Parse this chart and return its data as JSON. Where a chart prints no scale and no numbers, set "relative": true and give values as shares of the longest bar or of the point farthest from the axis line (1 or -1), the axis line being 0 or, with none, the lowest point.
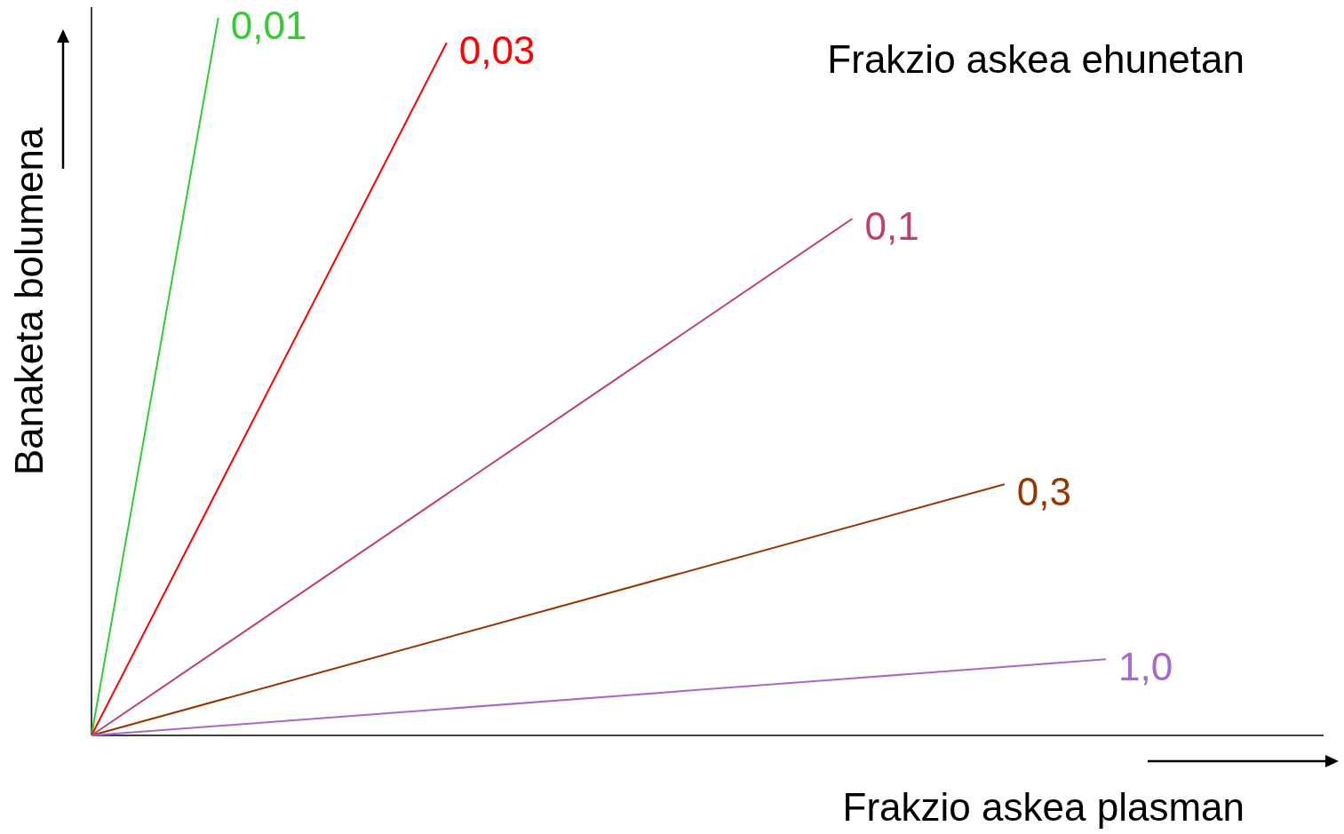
{
  "chart_data": {
    "type": "line",
    "relative": true,
    "legend_title": "Frakzio askea ehunetan",
    "xlabel": "Frakzio askea plasman",
    "ylabel": "Banaketa bolumena",
    "legend": false,
    "marker": "none",
    "line_style": "solid",
    "categories": [
      null,
      null,
      null,
      null,
      null,
      null,
      null,
      null,
      null,
      null,
      null,
      null,
      null,
      null,
      null,
      null,
      null,
      null,
      null,
      null,
      null,
      null,
      null,
      null,
      null,
      null,
      null,
      null,
      null,
      null,
      null,
      null,
      null,
      null,
      null,
      null,
      null,
      null,
      null,
      null,
      null
    ],
    "series": [
      {
        "name": "0,01",
        "color": "#33cc33",
        "values": [
          0,
          null,
          null,
          null,
          null,
          1,
          null,
          null,
          null,
          null,
          null,
          null,
          null,
          null,
          null,
          null,
          null,
          null,
          null,
          null,
          null,
          null,
          null,
          null,
          null,
          null,
          null,
          null,
          null,
          null,
          null,
          null,
          null,
          null,
          null,
          null,
          null,
          null,
          null,
          null,
          null
        ]
      },
      {
        "name": "0,03",
        "color": "#ff0000",
        "values": [
          0,
          null,
          null,
          null,
          null,
          null,
          null,
          null,
          null,
          null,
          null,
          null,
          null,
          null,
          0.965,
          null,
          null,
          null,
          null,
          null,
          null,
          null,
          null,
          null,
          null,
          null,
          null,
          null,
          null,
          null,
          null,
          null,
          null,
          null,
          null,
          null,
          null,
          null,
          null,
          null,
          null
        ]
      },
      {
        "name": "0,1",
        "color": "#c0406a",
        "values": [
          0,
          null,
          null,
          null,
          null,
          null,
          null,
          null,
          null,
          null,
          null,
          null,
          null,
          null,
          null,
          null,
          null,
          null,
          null,
          null,
          null,
          null,
          null,
          null,
          null,
          null,
          null,
          null,
          null,
          null,
          0.72,
          null,
          null,
          null,
          null,
          null,
          null,
          null,
          null,
          null,
          null
        ]
      },
      {
        "name": "0,3",
        "color": "#993300",
        "values": [
          0,
          null,
          null,
          null,
          null,
          null,
          null,
          null,
          null,
          null,
          null,
          null,
          null,
          null,
          null,
          null,
          null,
          null,
          null,
          null,
          null,
          null,
          null,
          null,
          null,
          null,
          null,
          null,
          null,
          null,
          null,
          null,
          null,
          null,
          null,
          null,
          0.35,
          null,
          null,
          null,
          null
        ]
      },
      {
        "name": "1,0",
        "color": "#aa66cc",
        "values": [
          0,
          null,
          null,
          null,
          null,
          null,
          null,
          null,
          null,
          null,
          null,
          null,
          null,
          null,
          null,
          null,
          null,
          null,
          null,
          null,
          null,
          null,
          null,
          null,
          null,
          null,
          null,
          null,
          null,
          null,
          null,
          null,
          null,
          null,
          null,
          null,
          null,
          null,
          null,
          null,
          0.106
        ]
      }
    ]
  }
}
